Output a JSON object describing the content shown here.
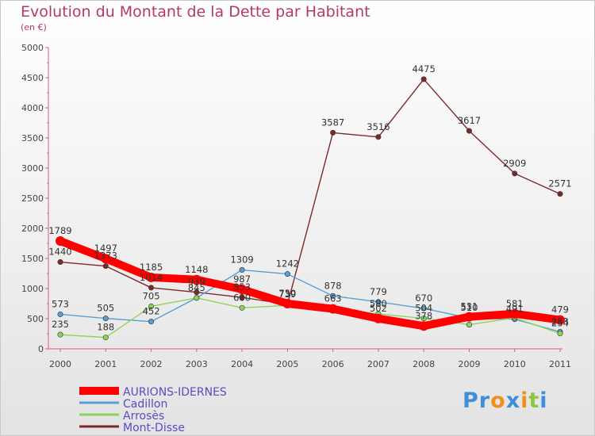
{
  "chart_data": {
    "type": "line",
    "title": "Evolution du Montant de la Dette par Habitant",
    "subtitle": "(en €)",
    "x": [
      "2000",
      "2001",
      "2002",
      "2003",
      "2004",
      "2005",
      "2006",
      "2007",
      "2008",
      "2009",
      "2010",
      "2011"
    ],
    "ylim": [
      0,
      5000
    ],
    "yticks": [
      0,
      500,
      1000,
      1500,
      2000,
      2500,
      3000,
      3500,
      4000,
      4500,
      5000
    ],
    "grid": false,
    "legend_position": "bottom-left",
    "series": [
      {
        "name": "AURIONS-IDERNES",
        "color": "#ff0000",
        "values": [
          1789,
          1497,
          1185,
          1148,
          987,
          750,
          663,
          502,
          378,
          531,
          581,
          479
        ],
        "labels": [
          "1789",
          "1497",
          "1185",
          "1148",
          "987",
          "750",
          "663",
          "502",
          "378",
          "531",
          "581",
          "479"
        ]
      },
      {
        "name": "Cadillon",
        "color": "#5a9fd4",
        "values": [
          573,
          505,
          452,
          845,
          1309,
          1242,
          878,
          779,
          670,
          510,
          491,
          283
        ],
        "labels": [
          "573",
          "505",
          "452",
          "845",
          "1309",
          "1242",
          "878",
          "779",
          "670",
          "510",
          "491",
          "283"
        ]
      },
      {
        "name": "Arrosès",
        "color": "#8fd45a",
        "values": [
          235,
          188,
          705,
          845,
          680,
          720,
          663,
          580,
          504,
          400,
          515,
          254
        ],
        "labels": [
          "235",
          "188",
          "705",
          "",
          "680",
          "",
          "",
          "580",
          "504",
          "",
          "",
          "254"
        ]
      },
      {
        "name": "Mont-Disse",
        "color": "#7b2a2a",
        "values": [
          1440,
          1373,
          1014,
          939,
          853,
          739,
          3587,
          3516,
          4475,
          3617,
          2909,
          2571
        ],
        "labels": [
          "1440",
          "1373",
          "1014",
          "939",
          "853",
          "739",
          "3587",
          "3516",
          "4475",
          "3617",
          "2909",
          "2571"
        ]
      }
    ]
  },
  "logo": {
    "text": "Proxiti"
  }
}
